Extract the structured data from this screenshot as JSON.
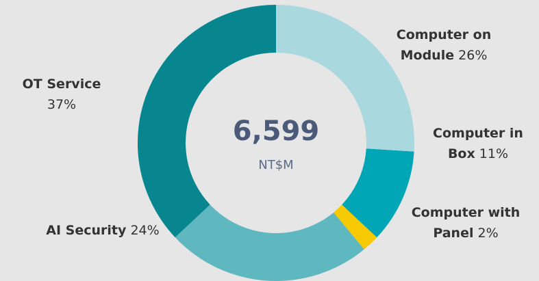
{
  "chart_data": {
    "type": "donut",
    "categories": [
      "Computer on Module",
      "Computer in Box",
      "Computer with Panel",
      "AI Security",
      "OT Service"
    ],
    "values": [
      26,
      11,
      2,
      24,
      37
    ],
    "value_labels": [
      "26%",
      "11%",
      "2%",
      "24%",
      "37%"
    ],
    "colors": [
      "#a9d9de",
      "#00a6b6",
      "#f6c900",
      "#5fb8c0",
      "#07868f"
    ],
    "center_text": "6,599",
    "center_unit": "NT$M"
  }
}
